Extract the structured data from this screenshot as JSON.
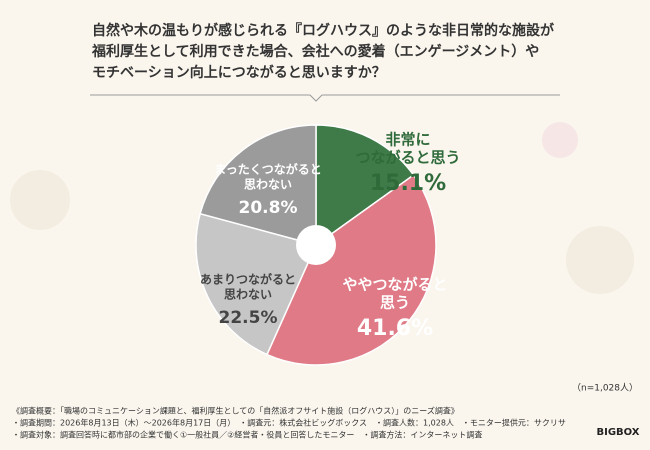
{
  "chart_data": {
    "type": "pie",
    "title": [
      "自然や木の温もりが感じられる『ログハウス』のような非日常的な施設が",
      "福利厚生として利用できた場合、会社への愛着（エンゲージメント）や",
      "モチベーション向上につながると思いますか？"
    ],
    "categories": [
      [
        "非常に",
        "つながると思う"
      ],
      [
        "ややつながると",
        "思う"
      ],
      [
        "あまりつながると",
        "思わない"
      ],
      [
        "まったくつながると",
        "思わない"
      ]
    ],
    "values": [
      15.1,
      41.6,
      22.5,
      20.8
    ],
    "value_labels": [
      "15.1%",
      "41.6%",
      "22.5%",
      "20.8%"
    ],
    "colors": [
      "#3f7b48",
      "#df7a86",
      "#c6c6c6",
      "#9b9b9b"
    ],
    "sample_note": "（n=1,028人）",
    "footnotes": [
      "《調査概要：「職場のコミュニケーション課題と、福利厚生としての「自然派オフサイト施設（ログハウス）」のニーズ調査》",
      "・調査期間：2026年8月13日（木）〜2026年8月17日（月）　・調査元：株式会社ビッグボックス　・調査人数：1,028人　・モニター提供元：サクリサ",
      "・調査対象：調査回答時に都市部の企業で働く①一般社員／②経営者・役員と回答したモニター　・調査方法：インターネット調査"
    ],
    "logo": "BIGBOX"
  }
}
